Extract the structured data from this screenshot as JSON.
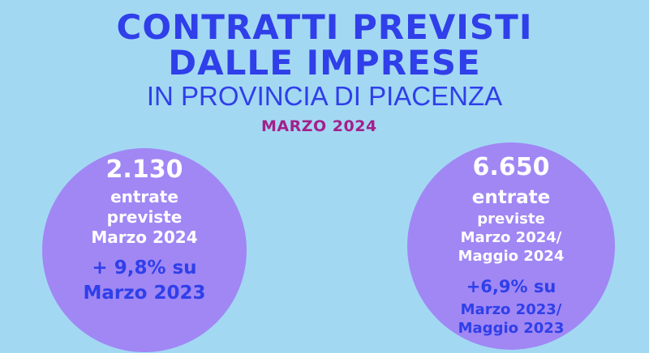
{
  "header": {
    "title_line1": "CONTRATTI PREVISTI",
    "title_line2": "DALLE IMPRESE",
    "subtitle": "IN PROVINCIA DI PIACENZA",
    "date": "MARZO  2024"
  },
  "stats": [
    {
      "value": "2.130",
      "line1": "entrate",
      "line2": "previste",
      "line3": "Marzo 2024",
      "change": "+ 9,8% su",
      "change_ref": "Marzo  2023"
    },
    {
      "value": "6.650",
      "line1": "entrate",
      "line2": "previste",
      "line3": "Marzo 2024/",
      "line4": "Maggio 2024",
      "change": "+6,9% su",
      "change_ref1": "Marzo 2023/",
      "change_ref2": "Maggio 2023"
    }
  ],
  "colors": {
    "background": "#a3d8f3",
    "title": "#2f3fe9",
    "date": "#a3208a",
    "circle": "#a087f4",
    "circle_text": "#ffffff"
  }
}
